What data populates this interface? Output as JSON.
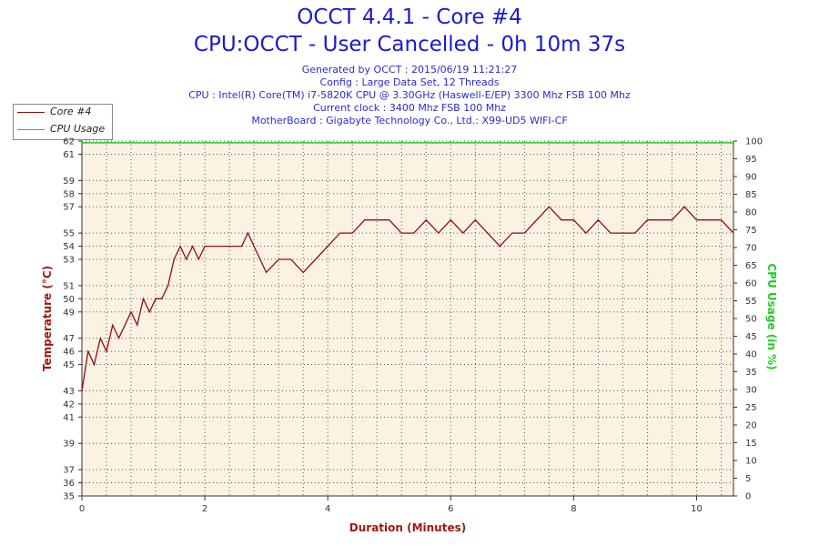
{
  "header": {
    "title": "OCCT 4.4.1 - Core #4",
    "subtitle": "CPU:OCCT - User Cancelled - 0h 10m 37s",
    "info_lines": [
      "Generated by OCCT : 2015/06/19 11:21:27",
      "Config : Large Data Set, 12 Threads",
      "CPU : Intel(R) Core(TM) i7-5820K CPU @ 3.30GHz (Haswell-E/EP) 3300 Mhz FSB 100 Mhz",
      "Current clock : 3400 Mhz FSB 100 Mhz",
      "MotherBoard : Gigabyte Technology Co., Ltd.: X99-UD5 WIFI-CF"
    ]
  },
  "legend": {
    "items": [
      {
        "label": "Core #4",
        "color": "#8b1010"
      },
      {
        "label": "CPU Usage",
        "color": "#22cc22"
      }
    ]
  },
  "colors": {
    "plot_bg": "#fcf2e3",
    "grid": "#555555",
    "temp": "#8b1010",
    "usage": "#22cc22",
    "left_label": "#a01818",
    "right_label": "#22cc22",
    "x_label": "#a01818"
  },
  "chart_data": {
    "type": "line",
    "xlabel": "Duration (Minutes)",
    "ylabel": "Temperature (°C)",
    "y2label": "CPU Usage (in %)",
    "xlim": [
      0,
      10.6
    ],
    "ylim": [
      35,
      62
    ],
    "y2lim": [
      0,
      100
    ],
    "x_ticks": [
      0,
      2,
      4,
      6,
      8,
      10
    ],
    "y_ticks": [
      35,
      36,
      37,
      39,
      41,
      42,
      43,
      45,
      46,
      47,
      49,
      50,
      51,
      53,
      54,
      55,
      57,
      58,
      59,
      61,
      62
    ],
    "y2_ticks": [
      0,
      5,
      10,
      15,
      20,
      25,
      30,
      35,
      40,
      45,
      50,
      55,
      60,
      65,
      70,
      75,
      80,
      85,
      90,
      95,
      100
    ],
    "grid": true,
    "legend_position": "top-left",
    "series": [
      {
        "name": "Core #4",
        "axis": "left",
        "x": [
          0.0,
          0.1,
          0.2,
          0.3,
          0.4,
          0.5,
          0.6,
          0.7,
          0.8,
          0.9,
          1.0,
          1.1,
          1.2,
          1.3,
          1.4,
          1.5,
          1.6,
          1.7,
          1.8,
          1.9,
          2.0,
          2.2,
          2.4,
          2.6,
          2.7,
          2.8,
          3.0,
          3.2,
          3.4,
          3.6,
          3.8,
          4.0,
          4.2,
          4.4,
          4.6,
          4.8,
          5.0,
          5.2,
          5.4,
          5.6,
          5.8,
          6.0,
          6.2,
          6.4,
          6.6,
          6.8,
          7.0,
          7.2,
          7.4,
          7.6,
          7.8,
          8.0,
          8.2,
          8.4,
          8.6,
          8.8,
          9.0,
          9.2,
          9.4,
          9.6,
          9.8,
          10.0,
          10.2,
          10.4,
          10.6
        ],
        "y": [
          43,
          46,
          45,
          47,
          46,
          48,
          47,
          48,
          49,
          48,
          50,
          49,
          50,
          50,
          51,
          53,
          54,
          53,
          54,
          53,
          54,
          54,
          54,
          54,
          55,
          54,
          52,
          53,
          53,
          52,
          53,
          54,
          55,
          55,
          56,
          56,
          56,
          55,
          55,
          56,
          55,
          56,
          55,
          56,
          55,
          54,
          55,
          55,
          56,
          57,
          56,
          56,
          55,
          56,
          55,
          55,
          55,
          56,
          56,
          56,
          57,
          56,
          56,
          56,
          55
        ]
      },
      {
        "name": "CPU Usage",
        "axis": "right",
        "x": [
          0,
          10.6
        ],
        "y": [
          99.5,
          99.5
        ]
      }
    ]
  }
}
